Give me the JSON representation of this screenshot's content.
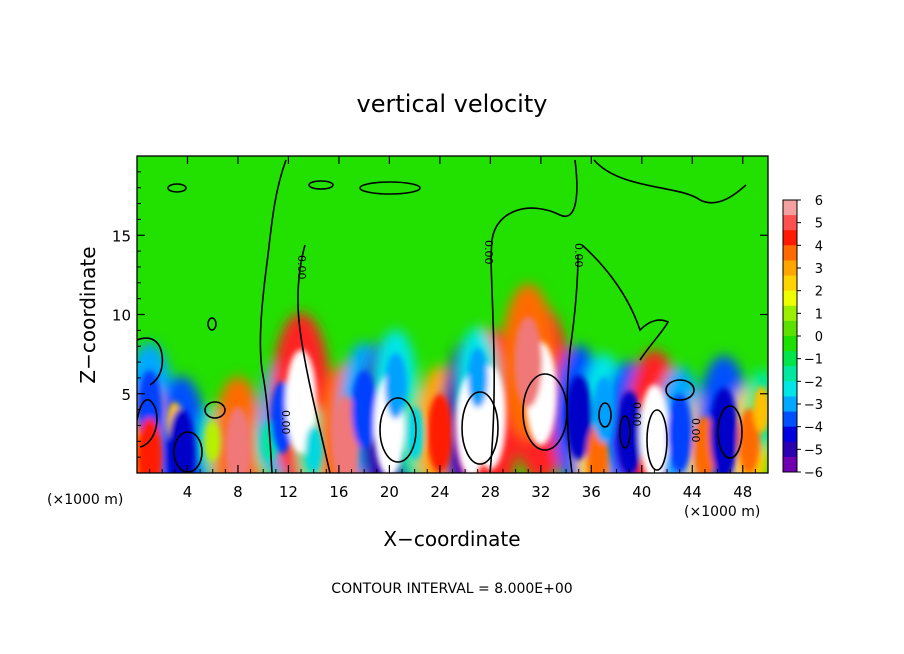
{
  "chart_data": {
    "type": "heatmap",
    "title": "vertical velocity",
    "xlabel": "X−coordinate",
    "ylabel": "Z−coordinate",
    "x_unit_left": "(×1000 m)",
    "x_unit_right": "(×1000 m)",
    "footer": "CONTOUR INTERVAL = 8.000E+00",
    "contour_label": "0.00",
    "xlim": [
      0,
      50
    ],
    "ylim": [
      0,
      20
    ],
    "x_ticks": [
      4,
      8,
      12,
      16,
      20,
      24,
      28,
      32,
      36,
      40,
      44,
      48
    ],
    "x_tick_labels": [
      "4",
      "8",
      "12",
      "16",
      "20",
      "24",
      "28",
      "32",
      "36",
      "40",
      "44",
      "48"
    ],
    "y_ticks": [
      5,
      10,
      15
    ],
    "y_tick_labels": [
      "5",
      "10",
      "15"
    ],
    "colorbar": {
      "ticks": [
        6,
        5,
        4,
        3,
        2,
        1,
        0,
        -1,
        -2,
        -3,
        -4,
        -5,
        -6
      ],
      "tick_labels": [
        "6",
        "5",
        "4",
        "3",
        "2",
        "1",
        "0",
        "−1",
        "−2",
        "−3",
        "−4",
        "−5",
        "−6"
      ],
      "colors": [
        "#f4a0a0",
        "#ff5050",
        "#ff1a00",
        "#ff6a00",
        "#ffa500",
        "#ffd200",
        "#f0ff00",
        "#9aee00",
        "#5ce000",
        "#1ee000",
        "#00e54a",
        "#00e8a0",
        "#00e6e6",
        "#00a8ff",
        "#0050ff",
        "#0000e0",
        "#2a00b0",
        "#7000b0"
      ]
    },
    "cells": [
      {
        "x": 1,
        "z": 4,
        "w": -4
      },
      {
        "x": 1,
        "z": 1,
        "w": 4
      },
      {
        "x": 3,
        "z": 3,
        "w": 1.5
      },
      {
        "x": 3.5,
        "z": 1.2,
        "w": -5
      },
      {
        "x": 6,
        "z": 2,
        "w": 1
      },
      {
        "x": 8,
        "z": 1.5,
        "w": 4.5
      },
      {
        "x": 10.5,
        "z": 2,
        "w": -1
      },
      {
        "x": 11.5,
        "z": 3.5,
        "w": -3.5
      },
      {
        "x": 13,
        "z": 4.5,
        "w": 6
      },
      {
        "x": 14,
        "z": 1.5,
        "w": -1.5
      },
      {
        "x": 16.5,
        "z": 2,
        "w": 5
      },
      {
        "x": 18,
        "z": 4,
        "w": -4
      },
      {
        "x": 20,
        "z": 3,
        "w": -6
      },
      {
        "x": 20.5,
        "z": 5.5,
        "w": -3
      },
      {
        "x": 22,
        "z": 2.5,
        "w": -2
      },
      {
        "x": 24,
        "z": 2.5,
        "w": 4
      },
      {
        "x": 26.5,
        "z": 3,
        "w": -6
      },
      {
        "x": 28,
        "z": 3.5,
        "w": 6
      },
      {
        "x": 27,
        "z": 6,
        "w": -2.5
      },
      {
        "x": 32,
        "z": 5,
        "w": 6
      },
      {
        "x": 31,
        "z": 7,
        "w": 5
      },
      {
        "x": 35,
        "z": 3.5,
        "w": -4.5
      },
      {
        "x": 36.5,
        "z": 1,
        "w": 3
      },
      {
        "x": 37,
        "z": 4,
        "w": -3
      },
      {
        "x": 39,
        "z": 2.5,
        "w": -4.5
      },
      {
        "x": 41,
        "z": 2.5,
        "w": 5.5
      },
      {
        "x": 43,
        "z": 2.5,
        "w": -4
      },
      {
        "x": 45,
        "z": 1.5,
        "w": 3
      },
      {
        "x": 46.5,
        "z": 2.5,
        "w": -5
      },
      {
        "x": 48.5,
        "z": 2,
        "w": 3
      },
      {
        "x": 49.5,
        "z": 4,
        "w": 1.5
      }
    ]
  }
}
